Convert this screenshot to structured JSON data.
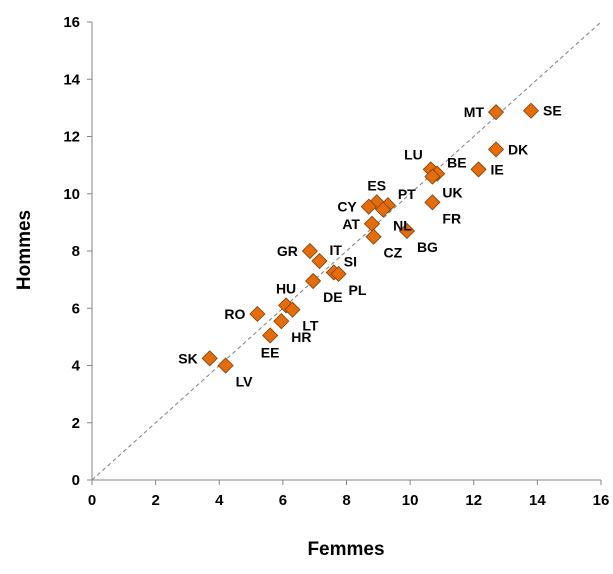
{
  "chart_data": {
    "type": "scatter",
    "title": "",
    "xlabel": "Femmes",
    "ylabel": "Hommes",
    "xlim": [
      0,
      16
    ],
    "ylim": [
      0,
      16
    ],
    "xticks": [
      "0",
      "2",
      "4",
      "6",
      "8",
      "10",
      "12",
      "14",
      "16"
    ],
    "yticks": [
      "0",
      "2",
      "4",
      "6",
      "8",
      "10",
      "12",
      "14",
      "16"
    ],
    "grid": false,
    "reference_line": "diagonal y = x (dashed)",
    "marker": "diamond",
    "marker_color": "#E46C0A",
    "marker_edge_color": "#7F3F0A",
    "points": [
      {
        "label": "MT",
        "x": 12.7,
        "y": 12.85,
        "label_pos": "left"
      },
      {
        "label": "SE",
        "x": 13.8,
        "y": 12.9,
        "label_pos": "right"
      },
      {
        "label": "DK",
        "x": 12.7,
        "y": 11.55,
        "label_pos": "right"
      },
      {
        "label": "IE",
        "x": 12.15,
        "y": 10.85,
        "label_pos": "right"
      },
      {
        "label": "LU",
        "x": 10.65,
        "y": 10.85,
        "label_pos": "above-left"
      },
      {
        "label": "BE",
        "x": 10.85,
        "y": 10.7,
        "label_pos": "above-right"
      },
      {
        "label": "UK",
        "x": 10.7,
        "y": 10.6,
        "label_pos": "below-right"
      },
      {
        "label": "FR",
        "x": 10.7,
        "y": 9.7,
        "label_pos": "below-right"
      },
      {
        "label": "ES",
        "x": 8.95,
        "y": 9.7,
        "label_pos": "above"
      },
      {
        "label": "PT",
        "x": 9.3,
        "y": 9.6,
        "label_pos": "above-right"
      },
      {
        "label": "CY",
        "x": 8.7,
        "y": 9.55,
        "label_pos": "left"
      },
      {
        "label": "AT",
        "x": 8.8,
        "y": 8.95,
        "label_pos": "left"
      },
      {
        "label": "NL",
        "x": 9.15,
        "y": 9.45,
        "label_pos": "below-right"
      },
      {
        "label": "BG",
        "x": 9.9,
        "y": 8.7,
        "label_pos": "below-right"
      },
      {
        "label": "CZ",
        "x": 8.85,
        "y": 8.5,
        "label_pos": "below-right"
      },
      {
        "label": "GR",
        "x": 6.85,
        "y": 8.0,
        "label_pos": "left"
      },
      {
        "label": "IT",
        "x": 7.15,
        "y": 7.65,
        "label_pos": "above-right"
      },
      {
        "label": "SI",
        "x": 7.6,
        "y": 7.25,
        "label_pos": "above-right"
      },
      {
        "label": "PL",
        "x": 7.75,
        "y": 7.2,
        "label_pos": "below-right"
      },
      {
        "label": "DE",
        "x": 6.95,
        "y": 6.95,
        "label_pos": "below-right"
      },
      {
        "label": "HU",
        "x": 6.1,
        "y": 6.1,
        "label_pos": "above"
      },
      {
        "label": "LT",
        "x": 6.3,
        "y": 5.95,
        "label_pos": "below-right"
      },
      {
        "label": "RO",
        "x": 5.2,
        "y": 5.8,
        "label_pos": "left"
      },
      {
        "label": "HR",
        "x": 5.95,
        "y": 5.55,
        "label_pos": "below-right"
      },
      {
        "label": "EE",
        "x": 5.6,
        "y": 5.05,
        "label_pos": "below"
      },
      {
        "label": "SK",
        "x": 3.7,
        "y": 4.25,
        "label_pos": "left"
      },
      {
        "label": "LV",
        "x": 4.2,
        "y": 4.0,
        "label_pos": "below-right"
      }
    ]
  }
}
